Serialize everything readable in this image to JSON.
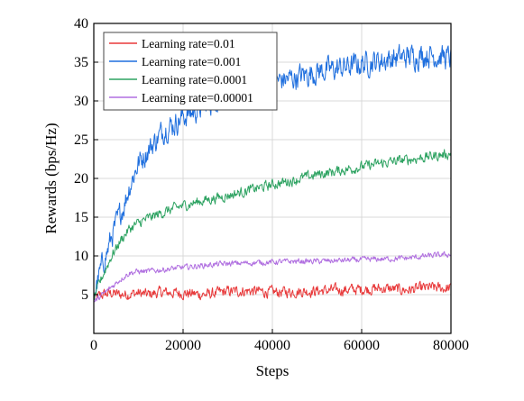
{
  "chart_data": {
    "type": "line",
    "title": "",
    "xlabel": "Steps",
    "ylabel": "Rewards (bps/Hz)",
    "xlim": [
      0,
      80000
    ],
    "ylim": [
      0,
      40
    ],
    "x_ticks": [
      0,
      20000,
      40000,
      60000,
      80000
    ],
    "x_tick_labels": [
      "0",
      "20000",
      "40000",
      "60000",
      "80000"
    ],
    "y_ticks": [
      5,
      10,
      15,
      20,
      25,
      30,
      35,
      40
    ],
    "y_tick_labels": [
      "5",
      "10",
      "15",
      "20",
      "25",
      "30",
      "35",
      "40"
    ],
    "grid": true,
    "legend_position": "top-left",
    "series": [
      {
        "name": "Learning rate=0.01",
        "color": "#e8393a",
        "x": [
          0,
          2000,
          4000,
          6000,
          8000,
          10000,
          12000,
          15000,
          20000,
          25000,
          30000,
          35000,
          40000,
          45000,
          50000,
          55000,
          60000,
          65000,
          70000,
          75000,
          80000
        ],
        "y": [
          4.5,
          5.0,
          5.2,
          5.0,
          5.1,
          5.2,
          5.0,
          5.3,
          5.2,
          5.0,
          5.4,
          5.5,
          5.3,
          5.4,
          5.5,
          5.6,
          5.7,
          5.8,
          5.6,
          5.9,
          5.8
        ],
        "noise": 0.6
      },
      {
        "name": "Learning rate=0.001",
        "color": "#1f6fde",
        "x": [
          0,
          1000,
          2000,
          3000,
          4000,
          5000,
          6000,
          7000,
          8000,
          9000,
          10000,
          12000,
          14000,
          16000,
          18000,
          20000,
          22000,
          25000,
          28000,
          30000,
          35000,
          40000,
          45000,
          50000,
          55000,
          60000,
          65000,
          70000,
          75000,
          80000
        ],
        "y": [
          5.0,
          7.0,
          9.0,
          10.5,
          12.5,
          14.0,
          15.5,
          17.0,
          19.0,
          20.5,
          22.0,
          23.5,
          25.0,
          26.5,
          27.0,
          28.0,
          28.5,
          29.5,
          30.5,
          31.0,
          32.0,
          32.5,
          33.0,
          33.8,
          34.2,
          34.8,
          35.3,
          35.7,
          36.0,
          35.5
        ],
        "noise": 1.3
      },
      {
        "name": "Learning rate=0.0001",
        "color": "#2ea362",
        "x": [
          0,
          2000,
          4000,
          6000,
          8000,
          10000,
          12000,
          15000,
          20000,
          25000,
          30000,
          35000,
          40000,
          45000,
          50000,
          55000,
          60000,
          65000,
          70000,
          75000,
          80000
        ],
        "y": [
          4.5,
          7.5,
          10.0,
          12.0,
          13.5,
          14.2,
          14.8,
          15.5,
          16.5,
          17.2,
          17.8,
          18.5,
          19.2,
          19.8,
          20.5,
          21.0,
          21.5,
          22.0,
          22.4,
          22.8,
          23.2
        ],
        "noise": 0.55
      },
      {
        "name": "Learning rate=0.00001",
        "color": "#b06fe0",
        "x": [
          0,
          2000,
          4000,
          6000,
          8000,
          10000,
          12000,
          15000,
          20000,
          25000,
          30000,
          35000,
          40000,
          45000,
          50000,
          55000,
          60000,
          65000,
          70000,
          75000,
          80000
        ],
        "y": [
          4.0,
          5.0,
          6.0,
          7.0,
          7.8,
          8.0,
          8.0,
          8.2,
          8.5,
          8.8,
          9.0,
          9.1,
          9.2,
          9.3,
          9.3,
          9.4,
          9.5,
          9.6,
          9.7,
          10.0,
          10.2
        ],
        "noise": 0.3
      }
    ]
  }
}
